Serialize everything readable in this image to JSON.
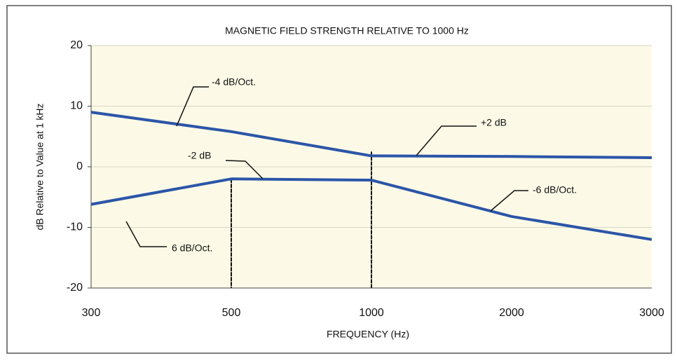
{
  "chart_data": {
    "type": "line",
    "title": "MAGNETIC FIELD STRENGTH RELATIVE TO 1000 Hz",
    "xlabel": "FREQUENCY (Hz)",
    "ylabel": "dB Relative to Value at 1 kHz",
    "categories": [
      "300",
      "500",
      "1000",
      "2000",
      "3000"
    ],
    "series": [
      {
        "color": "#2b55a8",
        "values": [
          9,
          5.8,
          1.8,
          1.7,
          1.5
        ]
      },
      {
        "color": "#2b55a8",
        "values": [
          -6.2,
          -2,
          -2.2,
          -8.2,
          -12
        ]
      }
    ],
    "ylim": [
      -20,
      20
    ],
    "yticks": [
      -20,
      -10,
      0,
      10,
      20
    ],
    "grid": true,
    "annotations": [
      "-4 dB/Oct.",
      "+2 dB",
      "-2 dB",
      "-6 dB/Oct.",
      "6 dB/Oct."
    ]
  }
}
